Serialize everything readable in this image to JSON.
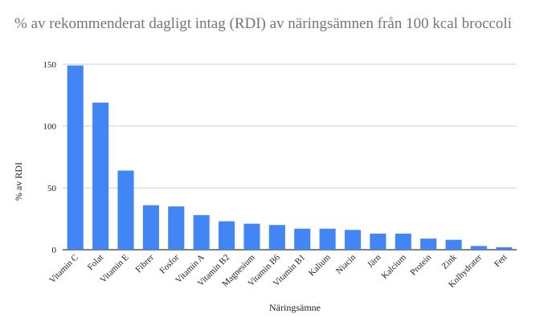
{
  "chart_data": {
    "type": "bar",
    "title": "% av rekommenderat dagligt intag (RDI) av näringsämnen från 100 kcal broccoli",
    "xlabel": "Näringsämne",
    "ylabel": "% av RDI",
    "ylim": [
      0,
      150
    ],
    "yticks": [
      0,
      50,
      100,
      150
    ],
    "grid": true,
    "legend": "none",
    "bar_color": "#4285f4",
    "categories": [
      "Vitamin C",
      "Folat",
      "Vitamin E",
      "Fibrer",
      "Fosfor",
      "Vitamin A",
      "Vitamin B2",
      "Magnesium",
      "Vitamin B6",
      "Vitamin B1",
      "Kalium",
      "Niacin",
      "Järn",
      "Kalcium",
      "Protein",
      "Zink",
      "Kolhydrater",
      "Fett"
    ],
    "values": [
      149,
      119,
      64,
      36,
      35,
      28,
      23,
      21,
      20,
      17,
      17,
      16,
      13,
      13,
      9,
      8,
      3,
      2
    ]
  }
}
